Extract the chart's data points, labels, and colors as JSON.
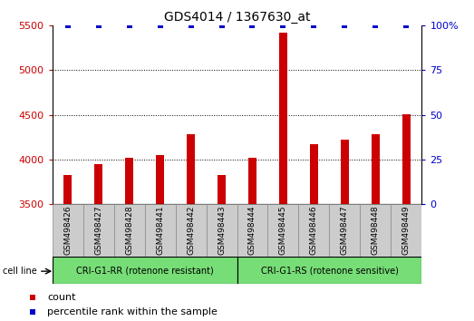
{
  "title": "GDS4014 / 1367630_at",
  "categories": [
    "GSM498426",
    "GSM498427",
    "GSM498428",
    "GSM498441",
    "GSM498442",
    "GSM498443",
    "GSM498444",
    "GSM498445",
    "GSM498446",
    "GSM498447",
    "GSM498448",
    "GSM498449"
  ],
  "counts": [
    3820,
    3950,
    4020,
    4050,
    4280,
    3820,
    4020,
    5420,
    4170,
    4220,
    4280,
    4510
  ],
  "percentiles": [
    100,
    100,
    100,
    100,
    100,
    100,
    100,
    100,
    100,
    100,
    100,
    100
  ],
  "bar_color": "#cc0000",
  "percentile_color": "#0000cc",
  "ylim_left": [
    3500,
    5500
  ],
  "ylim_right": [
    0,
    100
  ],
  "yticks_left": [
    3500,
    4000,
    4500,
    5000,
    5500
  ],
  "yticks_right": [
    0,
    25,
    50,
    75,
    100
  ],
  "grid_color": "#000000",
  "group1_label": "CRI-G1-RR (rotenone resistant)",
  "group2_label": "CRI-G1-RS (rotenone sensitive)",
  "group_bg_color": "#77dd77",
  "label_bg_color": "#cccccc",
  "cell_line_label": "cell line",
  "legend_count_label": "count",
  "legend_percentile_label": "percentile rank within the sample",
  "tick_label_color_left": "#cc0000",
  "tick_label_color_right": "#0000cc",
  "title_fontsize": 10,
  "axis_fontsize": 8,
  "legend_fontsize": 8,
  "bar_width": 0.25
}
